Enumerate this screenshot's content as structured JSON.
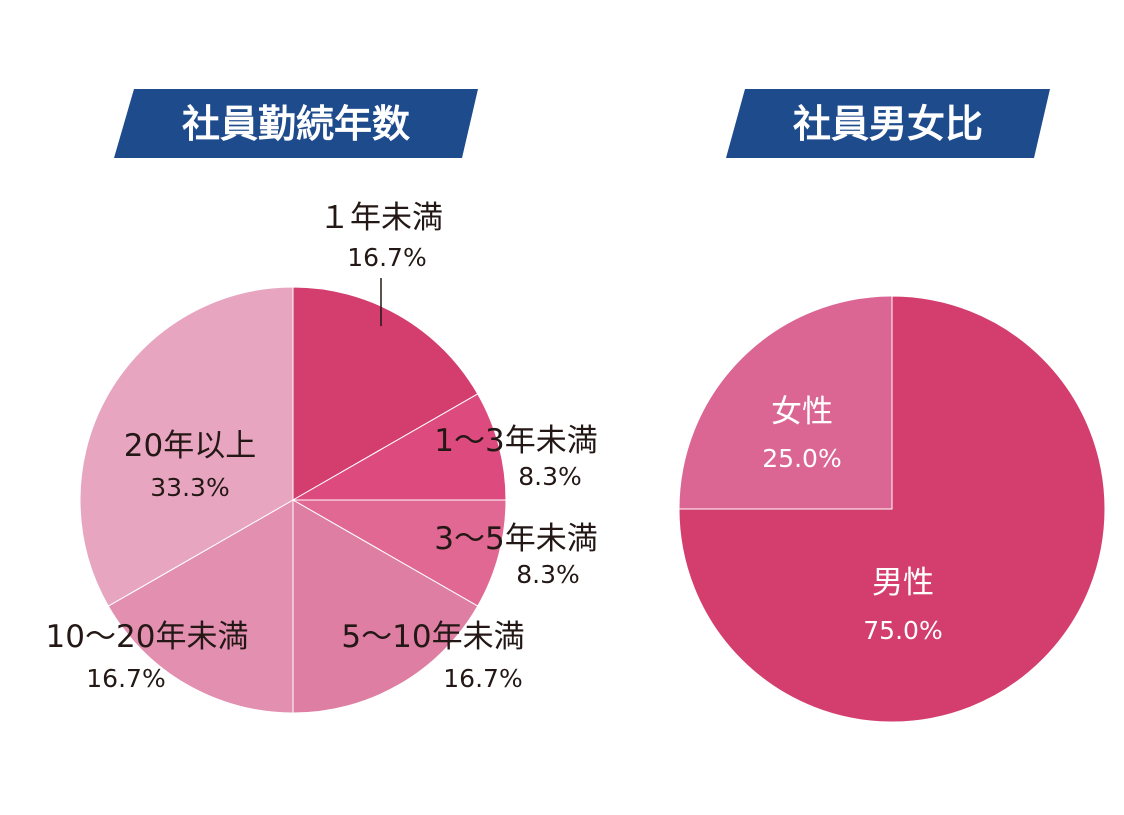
{
  "colors": {
    "banner": "#1e4b8c",
    "banner_text": "#ffffff",
    "label_dark": "#231815",
    "label_light": "#ffffff"
  },
  "chart_data": [
    {
      "type": "pie",
      "title": "社員勤続年数",
      "start_angle": "12 o'clock",
      "direction": "clockwise",
      "slices": [
        {
          "name": "１年未満",
          "value": 16.7,
          "label": "16.7%",
          "color": "#d33e6f"
        },
        {
          "name": "1〜3年未満",
          "value": 8.3,
          "label": "8.3%",
          "color": "#dd4a7e"
        },
        {
          "name": "3〜5年未満",
          "value": 8.3,
          "label": "8.3%",
          "color": "#e06892"
        },
        {
          "name": "5〜10年未満",
          "value": 16.7,
          "label": "16.7%",
          "color": "#de7ea3"
        },
        {
          "name": "10〜20年未満",
          "value": 16.7,
          "label": "16.7%",
          "color": "#e28fb0"
        },
        {
          "name": "20年以上",
          "value": 33.3,
          "label": "33.3%",
          "color": "#e8a5c0"
        }
      ]
    },
    {
      "type": "pie",
      "title": "社員男女比",
      "start_angle": "12 o'clock",
      "direction": "clockwise",
      "slices": [
        {
          "name": "男性",
          "value": 75.0,
          "label": "75.0%",
          "color": "#d33e6f"
        },
        {
          "name": "女性",
          "value": 25.0,
          "label": "25.0%",
          "color": "#db6693"
        }
      ]
    }
  ]
}
